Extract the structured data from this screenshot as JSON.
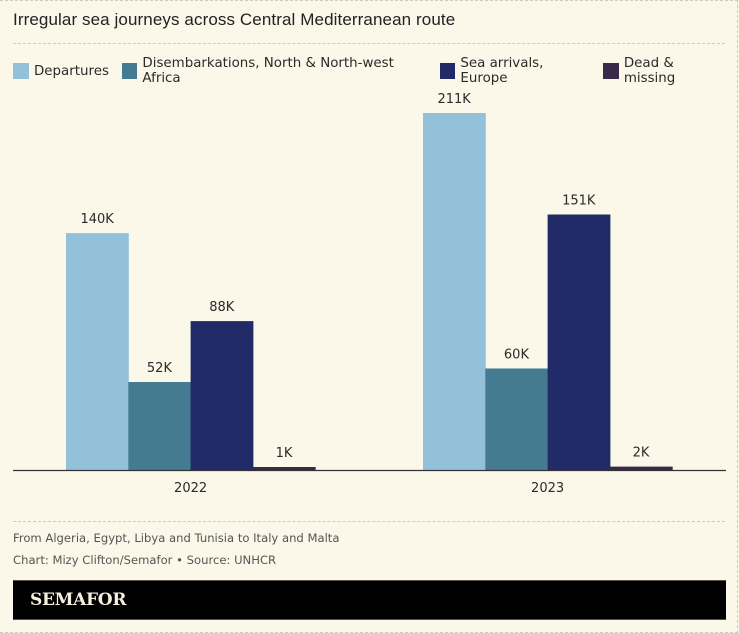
{
  "chart_data": {
    "type": "bar",
    "title": "Irregular sea journeys across Central Mediterranean route",
    "categories": [
      "2022",
      "2023"
    ],
    "series": [
      {
        "name": "Departures",
        "color": "#93c1da",
        "values": [
          140,
          211
        ],
        "labels": [
          "140K",
          "211K"
        ]
      },
      {
        "name": "Disembarkations, North & North-west Africa",
        "color": "#447b90",
        "values": [
          52,
          60
        ],
        "labels": [
          "52K",
          "60K"
        ]
      },
      {
        "name": "Sea arrivals, Europe",
        "color": "#202b67",
        "values": [
          88,
          151
        ],
        "labels": [
          "88K",
          "151K"
        ]
      },
      {
        "name": "Dead & missing",
        "color": "#3a2a4a",
        "values": [
          1,
          2
        ],
        "labels": [
          "1K",
          "2K"
        ]
      }
    ],
    "units": "thousands",
    "xlabel": "",
    "ylabel": "",
    "ylim": [
      0,
      211
    ],
    "grid": false,
    "legend": "top-left"
  },
  "footer": {
    "note": "From Algeria, Egypt, Libya and Tunisia to Italy and Malta",
    "credit": "Chart: Mizy Clifton/Semafor • Source: UNHCR",
    "brand": "SEMAFOR"
  }
}
